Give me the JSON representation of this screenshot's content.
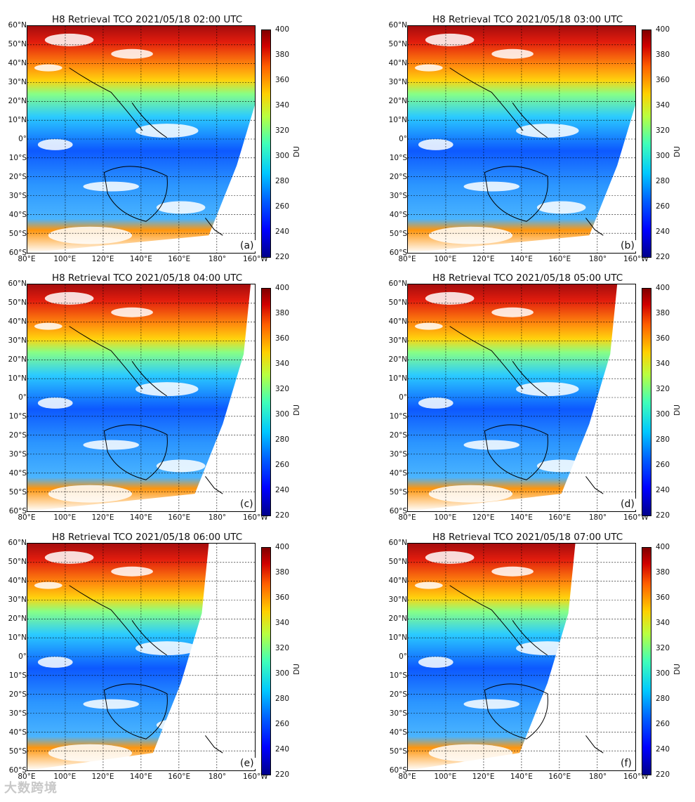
{
  "panels": [
    {
      "id": "a",
      "title": "H8 Retrieval TCO 2021/05/18 02:00 UTC",
      "label": "(a)"
    },
    {
      "id": "b",
      "title": "H8 Retrieval TCO 2021/05/18 03:00 UTC",
      "label": "(b)"
    },
    {
      "id": "c",
      "title": "H8 Retrieval TCO 2021/05/18 04:00 UTC",
      "label": "(c)"
    },
    {
      "id": "d",
      "title": "H8 Retrieval TCO 2021/05/18 05:00 UTC",
      "label": "(d)"
    },
    {
      "id": "e",
      "title": "H8 Retrieval TCO 2021/05/18 06:00 UTC",
      "label": "(e)"
    },
    {
      "id": "f",
      "title": "H8 Retrieval TCO 2021/05/18 07:00 UTC",
      "label": "(f)"
    }
  ],
  "lat_ticks": [
    "60°N",
    "50°N",
    "40°N",
    "30°N",
    "20°N",
    "10°N",
    "0°",
    "10°S",
    "20°S",
    "30°S",
    "40°S",
    "50°S",
    "60°S"
  ],
  "lon_ticks": [
    "80°E",
    "100°E",
    "120°E",
    "140°E",
    "160°E",
    "180°",
    "160°W"
  ],
  "colorbar": {
    "unit": "DU",
    "ticks": [
      "400",
      "380",
      "360",
      "340",
      "320",
      "300",
      "280",
      "260",
      "240",
      "220"
    ]
  },
  "watermark": "大数跨境"
}
